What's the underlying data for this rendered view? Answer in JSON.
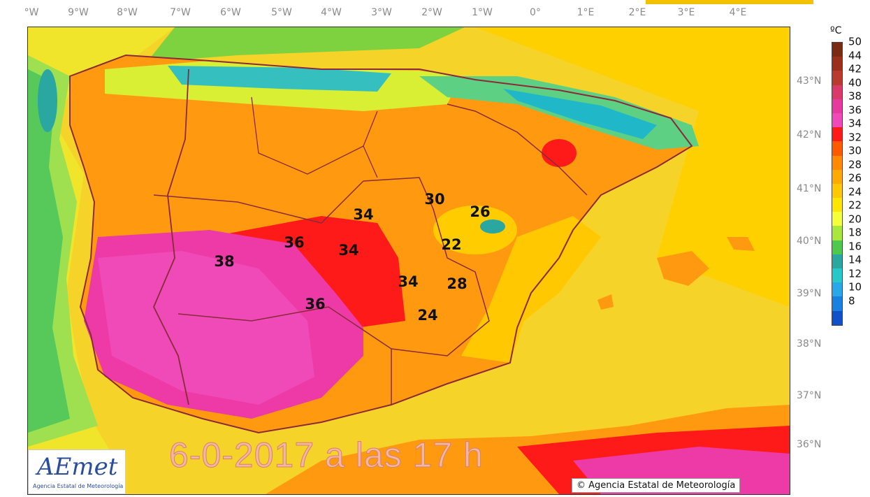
{
  "longitude_labels": [
    "°W",
    "9°W",
    "8°W",
    "7°W",
    "6°W",
    "5°W",
    "4°W",
    "3°W",
    "2°W",
    "1°W",
    "0°",
    "1°E",
    "2°E",
    "3°E",
    "4°E"
  ],
  "latitude_labels": [
    "43°N",
    "42°N",
    "41°N",
    "40°N",
    "39°N",
    "38°N",
    "37°N",
    "36°N"
  ],
  "temperature_labels": [
    "34",
    "36",
    "34",
    "38",
    "30",
    "26",
    "22",
    "34",
    "28",
    "36",
    "24"
  ],
  "date_overlay": "6-0-2017 a las 17 h",
  "logo": {
    "text": "AEmet",
    "subtitle": "Agencia Estatal de Meteorología"
  },
  "copyright": "© Agencia Estatal de Meteorología",
  "legend": {
    "unit": "ºC",
    "ticks": [
      "50",
      "44",
      "42",
      "40",
      "38",
      "36",
      "34",
      "32",
      "30",
      "28",
      "26",
      "24",
      "22",
      "20",
      "18",
      "16",
      "14",
      "12",
      "10",
      "8"
    ],
    "colors": [
      "#7a2a12",
      "#9b2f1c",
      "#bb3a2e",
      "#d93a6a",
      "#e83a9e",
      "#f04ab8",
      "#ff1a1a",
      "#ff5a00",
      "#ff8a00",
      "#ffaa00",
      "#ffc800",
      "#ffe600",
      "#f4ff3a",
      "#a8e83a",
      "#4ec94e",
      "#2aa7a0",
      "#27c8c8",
      "#28a8e8",
      "#1880e0",
      "#1050c8"
    ]
  }
}
